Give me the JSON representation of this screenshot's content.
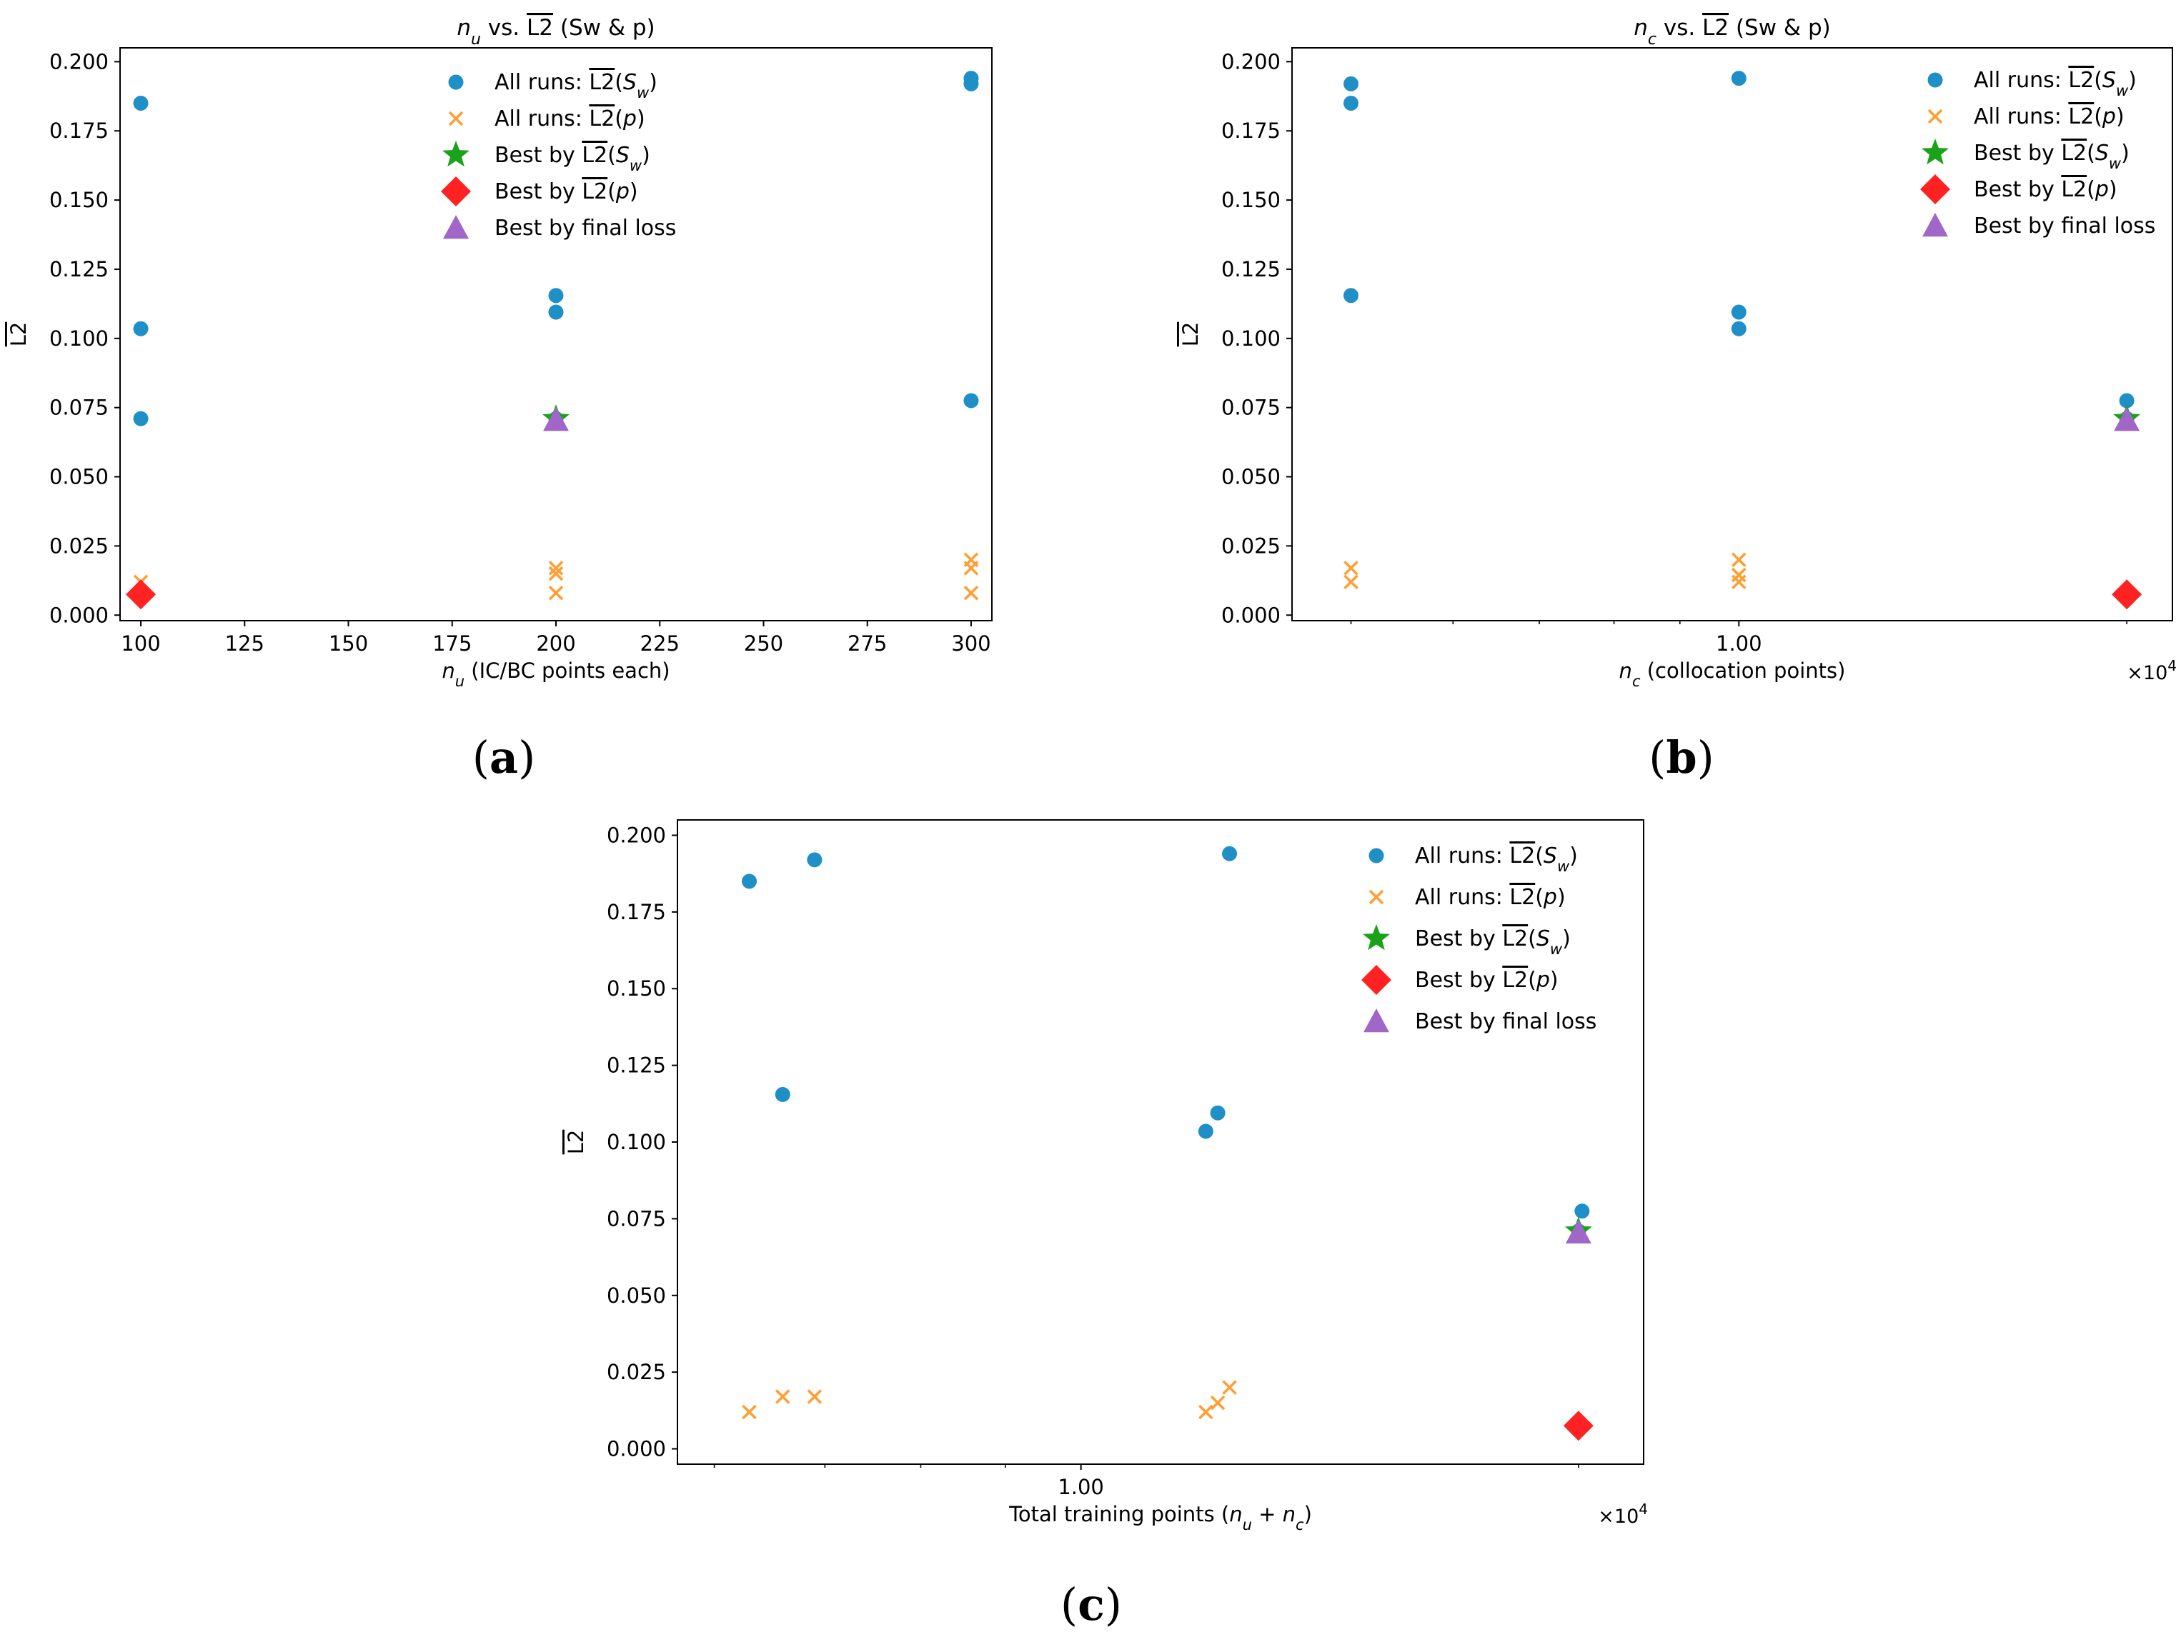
{
  "colors": {
    "all_sw": "#1f8fc7",
    "all_p": "#ff9f33",
    "best_sw": "#1aa31a",
    "best_p": "#ff2222",
    "best_loss": "#a066c8",
    "axes": "#000000"
  },
  "legend": {
    "all_sw": "All runs: L2(Sw)",
    "all_p": "All runs: L2(p)",
    "best_sw": "Best by L2(Sw)",
    "best_p": "Best by L2(p)",
    "best_loss": "Best by final loss"
  },
  "chart_data": [
    {
      "id": "a",
      "panel_label": "(a)",
      "type": "scatter",
      "title": "n_u vs. L2 (Sw & p)",
      "xlabel": "n_u (IC/BC points each)",
      "ylabel": "L2",
      "x_scale": "linear",
      "xlim": [
        95,
        305
      ],
      "ylim": [
        -0.002,
        0.205
      ],
      "xticks": [
        100,
        125,
        150,
        175,
        200,
        225,
        250,
        275,
        300
      ],
      "xtick_labels": [
        "100",
        "125",
        "150",
        "175",
        "200",
        "225",
        "250",
        "275",
        "300"
      ],
      "yticks": [
        0.0,
        0.025,
        0.05,
        0.075,
        0.1,
        0.125,
        0.15,
        0.175,
        0.2
      ],
      "ytick_labels": [
        "0.000",
        "0.025",
        "0.050",
        "0.075",
        "0.100",
        "0.125",
        "0.150",
        "0.175",
        "0.200"
      ],
      "multiplier": "",
      "legend_position": "top-center",
      "all_runs_sw": [
        [
          100,
          0.185
        ],
        [
          100,
          0.1035
        ],
        [
          100,
          0.071
        ],
        [
          200,
          0.1155
        ],
        [
          200,
          0.1095
        ],
        [
          200,
          0.071
        ],
        [
          300,
          0.194
        ],
        [
          300,
          0.192
        ],
        [
          300,
          0.0775
        ]
      ],
      "all_runs_p": [
        [
          100,
          0.012
        ],
        [
          100,
          0.008
        ],
        [
          200,
          0.017
        ],
        [
          200,
          0.015
        ],
        [
          200,
          0.008
        ],
        [
          300,
          0.02
        ],
        [
          300,
          0.017
        ],
        [
          300,
          0.008
        ]
      ],
      "best_sw": [
        [
          200,
          0.071
        ]
      ],
      "best_p": [
        [
          100,
          0.0075
        ]
      ],
      "best_loss": [
        [
          200,
          0.0705
        ]
      ]
    },
    {
      "id": "b",
      "panel_label": "(b)",
      "type": "scatter",
      "title": "n_c vs. L2 (Sw & p)",
      "xlabel": "n_c  (collocation points)",
      "ylabel": "L2",
      "x_scale": "log",
      "xlim": [
        4500,
        21700
      ],
      "ylim": [
        -0.002,
        0.205
      ],
      "xticks": [
        10000
      ],
      "xtick_labels": [
        "1.00"
      ],
      "minor_xticks": [
        5000,
        6000,
        7000,
        8000,
        9000,
        20000
      ],
      "yticks": [
        0.0,
        0.025,
        0.05,
        0.075,
        0.1,
        0.125,
        0.15,
        0.175,
        0.2
      ],
      "ytick_labels": [
        "0.000",
        "0.025",
        "0.050",
        "0.075",
        "0.100",
        "0.125",
        "0.150",
        "0.175",
        "0.200"
      ],
      "multiplier": "×10^4",
      "legend_position": "top-right",
      "all_runs_sw": [
        [
          5000,
          0.192
        ],
        [
          5000,
          0.185
        ],
        [
          5000,
          0.1155
        ],
        [
          10000,
          0.1095
        ],
        [
          10000,
          0.1035
        ],
        [
          10000,
          0.194
        ],
        [
          20000,
          0.0775
        ],
        [
          20000,
          0.071
        ]
      ],
      "all_runs_p": [
        [
          5000,
          0.017
        ],
        [
          5000,
          0.012
        ],
        [
          10000,
          0.02
        ],
        [
          10000,
          0.0145
        ],
        [
          10000,
          0.012
        ],
        [
          20000,
          0.008
        ]
      ],
      "best_sw": [
        [
          20000,
          0.071
        ]
      ],
      "best_p": [
        [
          20000,
          0.0075
        ]
      ],
      "best_loss": [
        [
          20000,
          0.0705
        ]
      ]
    },
    {
      "id": "c",
      "panel_label": "(c)",
      "type": "scatter",
      "title": "",
      "xlabel": "Total training points (n_u + n_c)",
      "ylabel": "L2",
      "x_scale": "log",
      "xlim": [
        5700,
        21900
      ],
      "ylim": [
        -0.005,
        0.205
      ],
      "xticks": [
        10000
      ],
      "xtick_labels": [
        "1.00"
      ],
      "minor_xticks": [
        6000,
        7000,
        8000,
        9000,
        20000
      ],
      "yticks": [
        0.0,
        0.025,
        0.05,
        0.075,
        0.1,
        0.125,
        0.15,
        0.175,
        0.2
      ],
      "ytick_labels": [
        "0.000",
        "0.025",
        "0.050",
        "0.075",
        "0.100",
        "0.125",
        "0.150",
        "0.175",
        "0.200"
      ],
      "multiplier": "×10^4",
      "legend_position": "top-right",
      "all_runs_sw": [
        [
          6300,
          0.185
        ],
        [
          6600,
          0.1155
        ],
        [
          6900,
          0.192
        ],
        [
          11900,
          0.1035
        ],
        [
          12100,
          0.1095
        ],
        [
          12300,
          0.194
        ],
        [
          20100,
          0.0775
        ],
        [
          20000,
          0.071
        ]
      ],
      "all_runs_p": [
        [
          6300,
          0.012
        ],
        [
          6600,
          0.017
        ],
        [
          6900,
          0.017
        ],
        [
          11900,
          0.012
        ],
        [
          12100,
          0.015
        ],
        [
          12300,
          0.02
        ],
        [
          20000,
          0.008
        ]
      ],
      "best_sw": [
        [
          20000,
          0.071
        ]
      ],
      "best_p": [
        [
          20000,
          0.0075
        ]
      ],
      "best_loss": [
        [
          20000,
          0.0705
        ]
      ]
    }
  ]
}
